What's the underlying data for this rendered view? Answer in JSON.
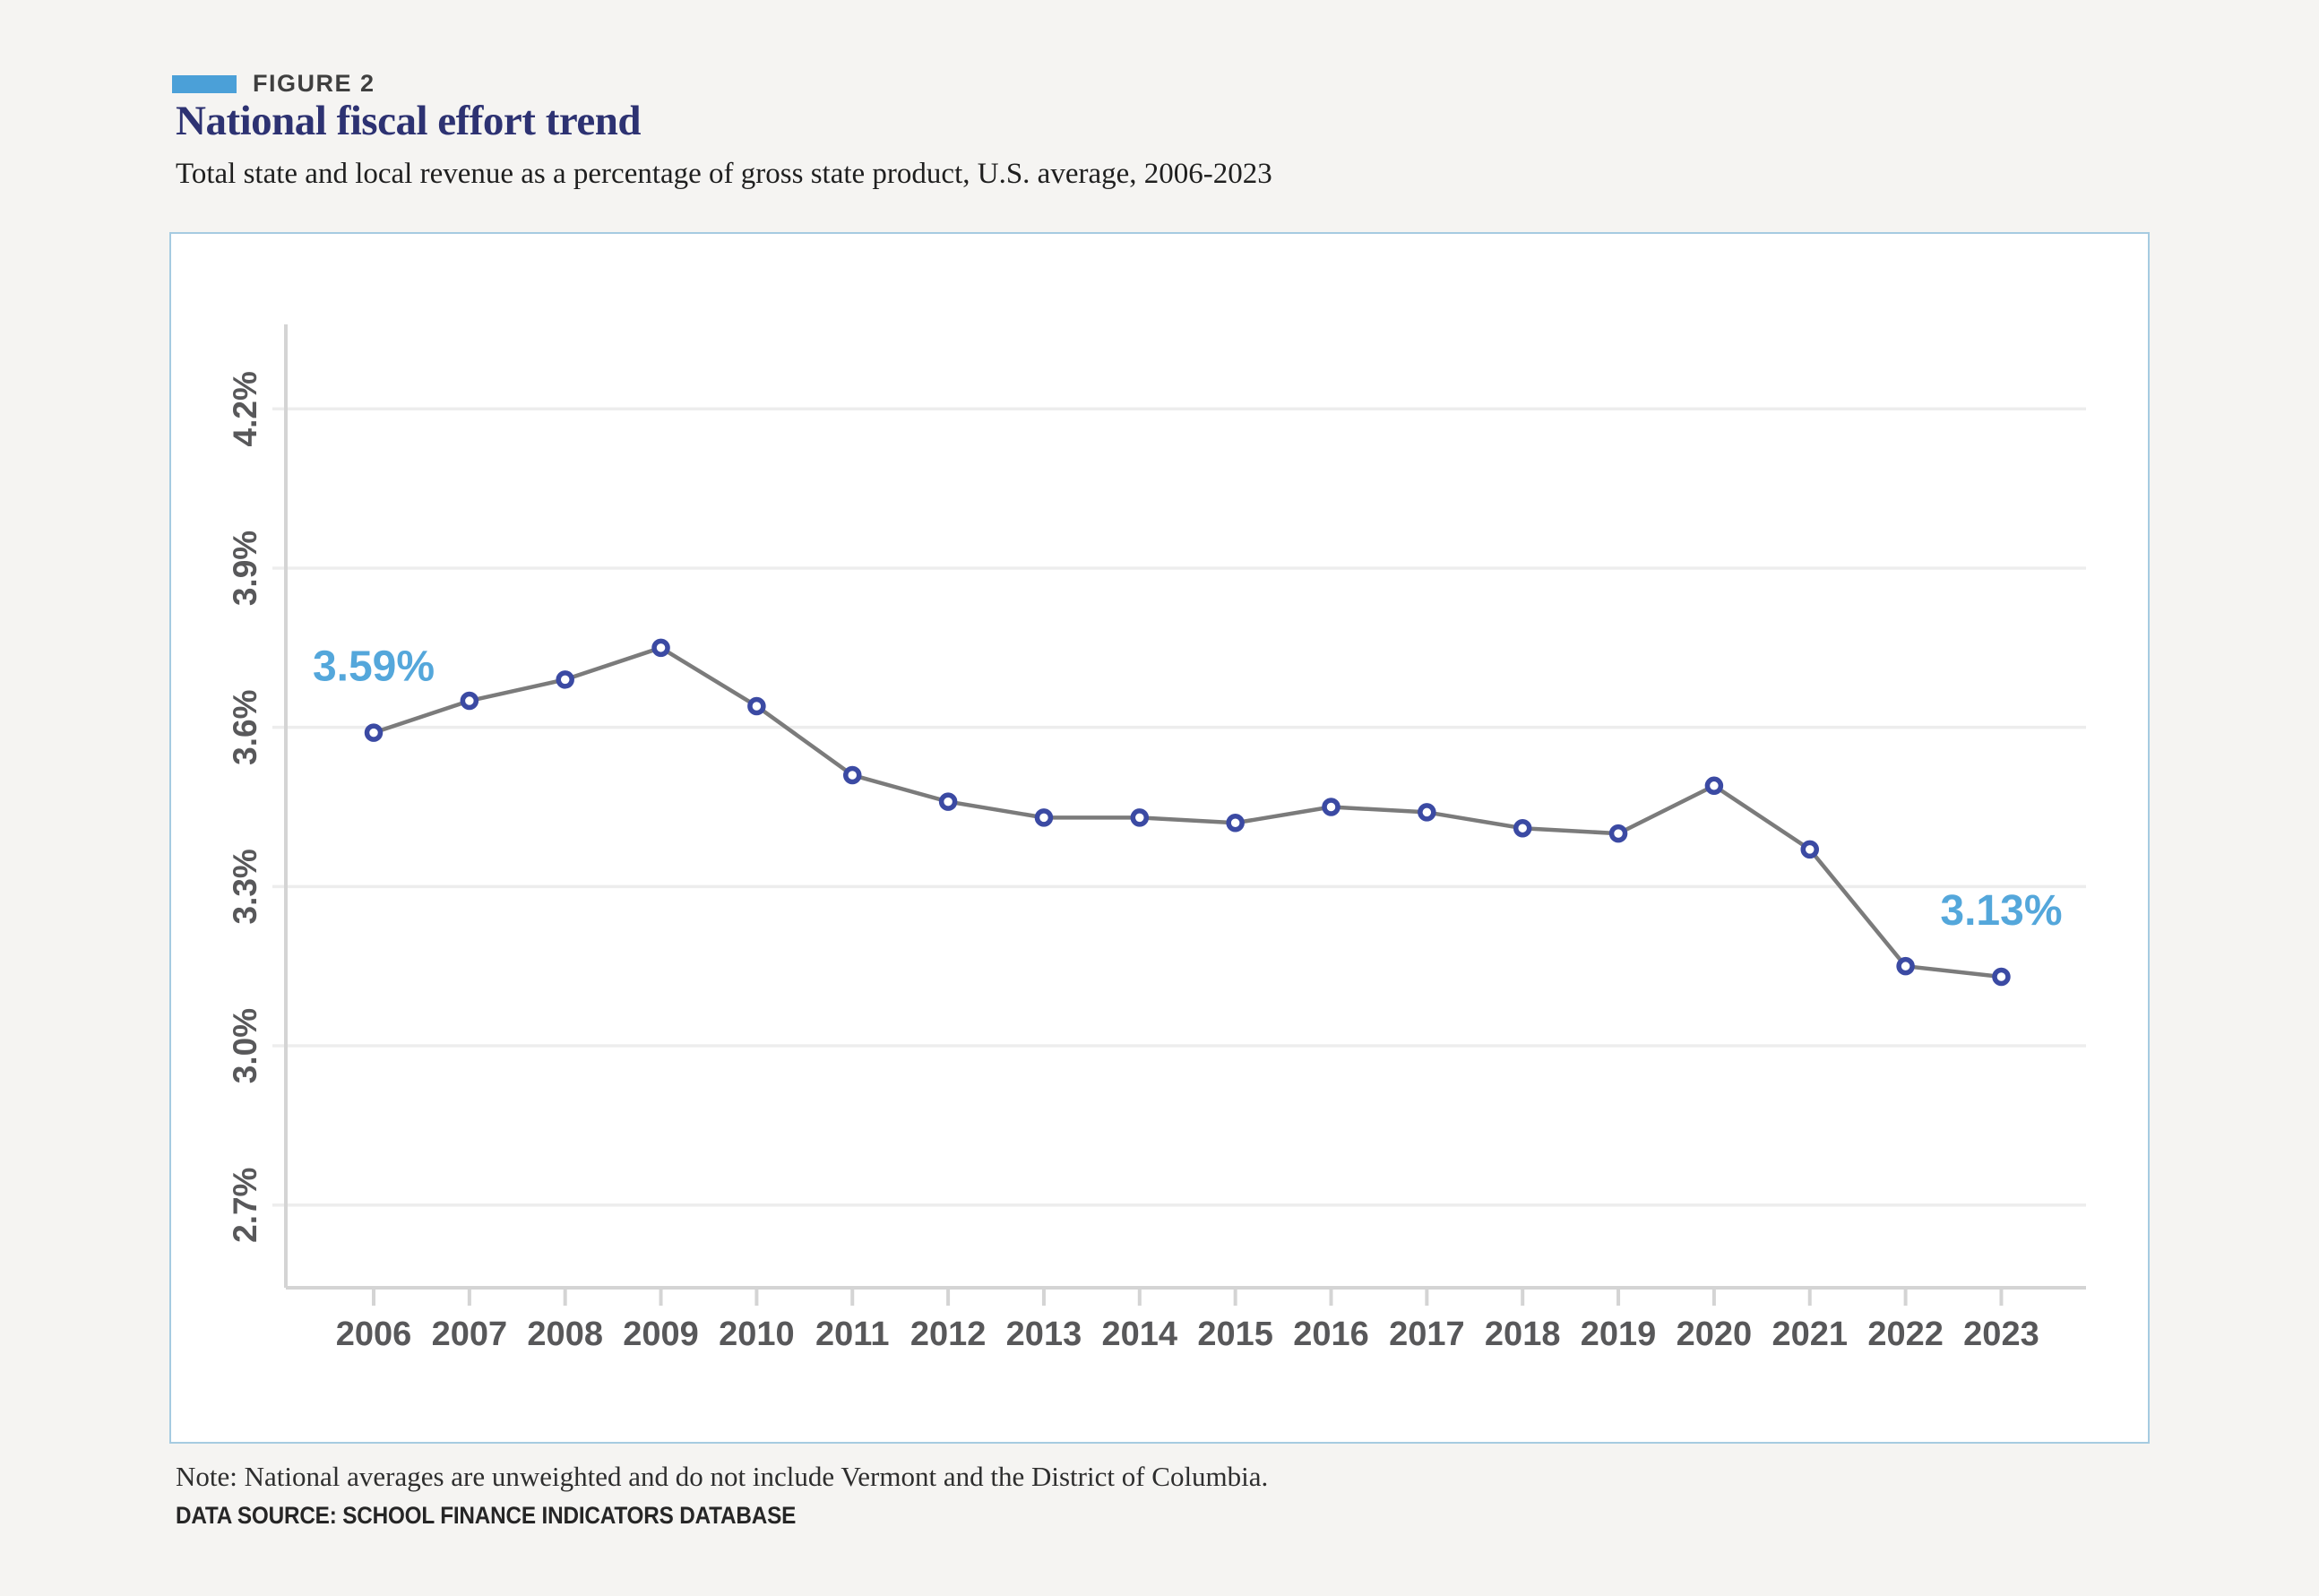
{
  "header": {
    "figure_label": "FIGURE 2",
    "title": "National fiscal effort trend",
    "subtitle": "Total state and local revenue as a percentage of gross state product, U.S. average, 2006-2023"
  },
  "chart_data": {
    "type": "line",
    "title": "National fiscal effort trend",
    "xlabel": "",
    "ylabel": "",
    "grid": "horizontal",
    "legend_position": "none",
    "categories": [
      "2006",
      "2007",
      "2008",
      "2009",
      "2010",
      "2011",
      "2012",
      "2013",
      "2014",
      "2015",
      "2016",
      "2017",
      "2018",
      "2019",
      "2020",
      "2021",
      "2022",
      "2023"
    ],
    "series": [
      {
        "name": "U.S. average state and local revenue as % of gross state product",
        "values": [
          3.59,
          3.65,
          3.69,
          3.75,
          3.64,
          3.51,
          3.46,
          3.43,
          3.43,
          3.42,
          3.45,
          3.44,
          3.41,
          3.4,
          3.49,
          3.37,
          3.15,
          3.13
        ]
      }
    ],
    "y_ticks": [
      {
        "value": 4.2,
        "label": "4.2%"
      },
      {
        "value": 3.9,
        "label": "3.9%"
      },
      {
        "value": 3.6,
        "label": "3.6%"
      },
      {
        "value": 3.3,
        "label": "3.3%"
      },
      {
        "value": 3.0,
        "label": "3.0%"
      },
      {
        "value": 2.7,
        "label": "2.7%"
      }
    ],
    "ylim": [
      2.55,
      4.37
    ],
    "annotations": [
      {
        "category": "2006",
        "text": "3.59%"
      },
      {
        "category": "2023",
        "text": "3.13%"
      }
    ],
    "colors": {
      "accent_blue": "#54a7db",
      "swatch_blue": "#4ba0d8",
      "title_navy": "#2d3272",
      "line_gray": "#7b7b7b",
      "marker_navy": "#3b4aa3",
      "axis_label_gray": "#58585a",
      "axis_line_gray": "#d4d4d4",
      "gridline_gray": "#ededed"
    }
  },
  "footer": {
    "note": "Note: National averages are unweighted and do not include Vermont and the District of Columbia.",
    "source": "DATA SOURCE: SCHOOL FINANCE INDICATORS DATABASE"
  }
}
